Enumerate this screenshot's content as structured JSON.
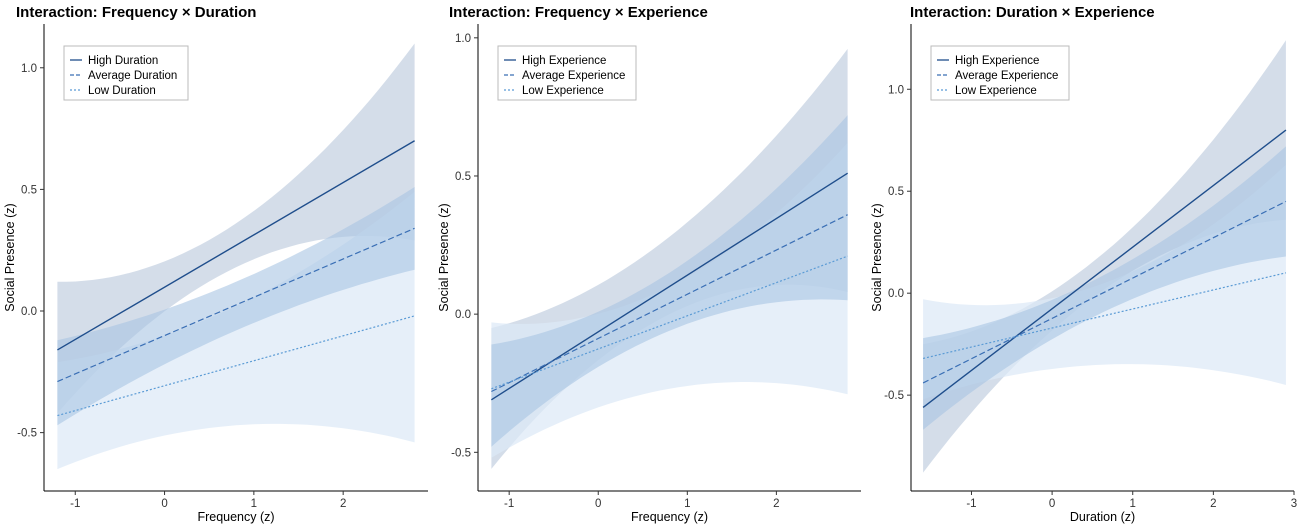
{
  "colors": {
    "high": "#1f4e8c",
    "average": "#3a6fb5",
    "low": "#5b9bd5",
    "band_high": "#c5d2e1",
    "band_average": "#a9c4e2",
    "band_low": "#dce9f6"
  },
  "chart_data": [
    {
      "type": "line",
      "title": "Interaction: Frequency × Duration",
      "xlabel": "Frequency (z)",
      "ylabel": "Social Presence (z)",
      "xlim": [
        -1.35,
        2.95
      ],
      "ylim": [
        -0.74,
        1.18
      ],
      "xticks": [
        -1,
        0,
        1,
        2
      ],
      "yticks": [
        -0.5,
        0.0,
        0.5,
        1.0
      ],
      "ytick_labels": [
        "-0.5",
        "0.0",
        "0.5",
        "1.0"
      ],
      "xtick_labels": [
        "-1",
        "0",
        "1",
        "2"
      ],
      "legend": [
        "High Duration",
        "Average Duration",
        "Low Duration"
      ],
      "legend_position": "top-left",
      "x": [
        -1.2,
        0.8,
        2.8
      ],
      "series": [
        {
          "name": "High Duration",
          "style": "solid",
          "values": [
            -0.16,
            0.27,
            0.7
          ],
          "lower": [
            -0.42,
            0.18,
            0.29
          ],
          "upper": [
            0.12,
            0.36,
            1.1
          ]
        },
        {
          "name": "Average Duration",
          "style": "dashed",
          "values": [
            -0.29,
            0.02,
            0.34
          ],
          "lower": [
            -0.47,
            -0.08,
            0.17
          ],
          "upper": [
            -0.12,
            0.12,
            0.51
          ]
        },
        {
          "name": "Low Duration",
          "style": "dotted",
          "values": [
            -0.43,
            -0.23,
            -0.02
          ],
          "lower": [
            -0.65,
            -0.47,
            -0.54
          ],
          "upper": [
            -0.21,
            0.02,
            0.49
          ]
        }
      ]
    },
    {
      "type": "line",
      "title": "Interaction: Frequency × Experience",
      "xlabel": "Frequency (z)",
      "ylabel": "Social Presence (z)",
      "xlim": [
        -1.35,
        2.95
      ],
      "ylim": [
        -0.64,
        1.05
      ],
      "xticks": [
        -1,
        0,
        1,
        2
      ],
      "yticks": [
        -0.5,
        0.0,
        0.5,
        1.0
      ],
      "ytick_labels": [
        "-0.5",
        "0.0",
        "0.5",
        "1.0"
      ],
      "xtick_labels": [
        "-1",
        "0",
        "1",
        "2"
      ],
      "legend": [
        "High Experience",
        "Average Experience",
        "Low Experience"
      ],
      "legend_position": "top-left",
      "x": [
        -1.2,
        0.8,
        2.8
      ],
      "series": [
        {
          "name": "High Experience",
          "style": "solid",
          "values": [
            -0.31,
            0.1,
            0.51
          ],
          "lower": [
            -0.56,
            0.0,
            0.08
          ],
          "upper": [
            -0.05,
            0.28,
            0.96
          ]
        },
        {
          "name": "Average Experience",
          "style": "dashed",
          "values": [
            -0.28,
            0.04,
            0.36
          ],
          "lower": [
            -0.48,
            -0.06,
            0.05
          ],
          "upper": [
            -0.11,
            0.15,
            0.72
          ]
        },
        {
          "name": "Low Experience",
          "style": "dotted",
          "values": [
            -0.27,
            -0.03,
            0.21
          ],
          "lower": [
            -0.52,
            -0.27,
            -0.29
          ],
          "upper": [
            -0.03,
            0.1,
            0.62
          ]
        }
      ]
    },
    {
      "type": "line",
      "title": "Interaction: Duration × Experience",
      "xlabel": "Duration (z)",
      "ylabel": "Social Presence (z)",
      "xlim": [
        -1.75,
        3.0
      ],
      "ylim": [
        -0.97,
        1.32
      ],
      "xticks": [
        -1,
        0,
        1,
        2,
        3
      ],
      "yticks": [
        -0.5,
        0.0,
        0.5,
        1.0
      ],
      "ytick_labels": [
        "-0.5",
        "0.0",
        "0.5",
        "1.0"
      ],
      "xtick_labels": [
        "-1",
        "0",
        "1",
        "2",
        "3"
      ],
      "legend": [
        "High Experience",
        "Average Experience",
        "Low Experience"
      ],
      "legend_position": "top-left",
      "x": [
        -1.6,
        0.65,
        2.9
      ],
      "series": [
        {
          "name": "High Experience",
          "style": "solid",
          "values": [
            -0.56,
            0.12,
            0.8
          ],
          "lower": [
            -0.88,
            0.02,
            0.36
          ],
          "upper": [
            -0.25,
            0.2,
            1.24
          ]
        },
        {
          "name": "Average Experience",
          "style": "dashed",
          "values": [
            -0.44,
            0.0,
            0.45
          ],
          "lower": [
            -0.67,
            -0.09,
            0.18
          ],
          "upper": [
            -0.22,
            0.09,
            0.72
          ]
        },
        {
          "name": "Low Experience",
          "style": "dotted",
          "values": [
            -0.32,
            -0.11,
            0.1
          ],
          "lower": [
            -0.52,
            -0.35,
            -0.45
          ],
          "upper": [
            -0.03,
            0.05,
            0.63
          ]
        }
      ]
    }
  ]
}
